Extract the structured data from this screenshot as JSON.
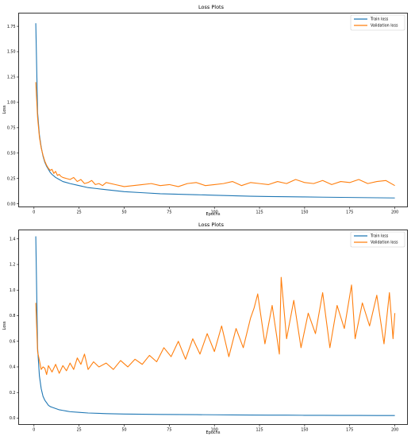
{
  "chart_data": [
    {
      "type": "line",
      "title": "Loss Plots",
      "xlabel": "Epochs",
      "ylabel": "Loss",
      "xlim": [
        -8.5,
        207
      ],
      "ylim": [
        -0.03,
        1.88
      ],
      "xticks": [
        0,
        25,
        50,
        75,
        100,
        125,
        150,
        175,
        200
      ],
      "xtick_labels": [
        "0",
        "25",
        "50",
        "75",
        "100",
        "125",
        "150",
        "175",
        "200"
      ],
      "yticks": [
        0.0,
        0.25,
        0.5,
        0.75,
        1.0,
        1.25,
        1.5,
        1.75
      ],
      "ytick_labels": [
        "0.00",
        "0.25",
        "0.50",
        "0.75",
        "1.00",
        "1.25",
        "1.50",
        "1.75"
      ],
      "grid": false,
      "legend_position": "top-right",
      "series": [
        {
          "name": "Train loss",
          "color": "#1f77b4",
          "x": [
            1,
            2,
            3,
            4,
            5,
            6,
            7,
            8,
            9,
            10,
            12,
            14,
            16,
            18,
            20,
            25,
            30,
            35,
            40,
            45,
            50,
            60,
            70,
            80,
            90,
            100,
            110,
            120,
            130,
            140,
            150,
            160,
            170,
            180,
            190,
            200
          ],
          "y": [
            1.78,
            0.9,
            0.68,
            0.56,
            0.47,
            0.41,
            0.37,
            0.34,
            0.31,
            0.29,
            0.26,
            0.24,
            0.22,
            0.21,
            0.2,
            0.18,
            0.16,
            0.15,
            0.14,
            0.13,
            0.12,
            0.11,
            0.1,
            0.095,
            0.09,
            0.085,
            0.08,
            0.075,
            0.072,
            0.07,
            0.068,
            0.066,
            0.064,
            0.062,
            0.06,
            0.058
          ]
        },
        {
          "name": "Validation loss",
          "color": "#ff7f0e",
          "x": [
            1,
            2,
            3,
            4,
            5,
            6,
            7,
            8,
            9,
            10,
            11,
            12,
            13,
            14,
            15,
            16,
            18,
            20,
            22,
            24,
            26,
            28,
            30,
            32,
            34,
            36,
            38,
            40,
            45,
            50,
            55,
            60,
            65,
            70,
            75,
            80,
            85,
            90,
            95,
            100,
            105,
            110,
            115,
            120,
            125,
            130,
            135,
            140,
            145,
            150,
            155,
            160,
            165,
            170,
            175,
            180,
            185,
            190,
            195,
            200
          ],
          "y": [
            1.2,
            0.85,
            0.66,
            0.55,
            0.48,
            0.42,
            0.38,
            0.35,
            0.33,
            0.34,
            0.3,
            0.32,
            0.28,
            0.29,
            0.27,
            0.26,
            0.25,
            0.24,
            0.26,
            0.22,
            0.24,
            0.2,
            0.21,
            0.23,
            0.19,
            0.2,
            0.18,
            0.21,
            0.19,
            0.17,
            0.18,
            0.19,
            0.2,
            0.18,
            0.19,
            0.17,
            0.2,
            0.21,
            0.18,
            0.19,
            0.2,
            0.22,
            0.18,
            0.21,
            0.2,
            0.19,
            0.22,
            0.2,
            0.24,
            0.21,
            0.2,
            0.23,
            0.19,
            0.22,
            0.21,
            0.24,
            0.2,
            0.22,
            0.23,
            0.18
          ]
        }
      ]
    },
    {
      "type": "line",
      "title": "Loss Plots",
      "xlabel": "Epochs",
      "ylabel": "Loss",
      "xlim": [
        -8.5,
        207
      ],
      "ylim": [
        -0.05,
        1.47
      ],
      "xticks": [
        0,
        25,
        50,
        75,
        100,
        125,
        150,
        175,
        200
      ],
      "xtick_labels": [
        "0",
        "25",
        "50",
        "75",
        "100",
        "125",
        "150",
        "175",
        "200"
      ],
      "yticks": [
        0.0,
        0.2,
        0.4,
        0.6,
        0.8,
        1.0,
        1.2,
        1.4
      ],
      "ytick_labels": [
        "0.0",
        "0.2",
        "0.4",
        "0.6",
        "0.8",
        "1.0",
        "1.2",
        "1.4"
      ],
      "grid": false,
      "legend_position": "top-right",
      "series": [
        {
          "name": "Train loss",
          "color": "#1f77b4",
          "x": [
            1,
            2,
            3,
            4,
            5,
            6,
            7,
            8,
            9,
            10,
            12,
            14,
            16,
            18,
            20,
            25,
            30,
            40,
            50,
            60,
            70,
            80,
            90,
            100,
            110,
            120,
            130,
            140,
            150,
            160,
            170,
            180,
            190,
            200
          ],
          "y": [
            1.42,
            0.55,
            0.33,
            0.23,
            0.17,
            0.14,
            0.12,
            0.1,
            0.09,
            0.085,
            0.075,
            0.065,
            0.06,
            0.055,
            0.05,
            0.045,
            0.04,
            0.035,
            0.032,
            0.03,
            0.029,
            0.028,
            0.027,
            0.026,
            0.025,
            0.024,
            0.023,
            0.023,
            0.022,
            0.022,
            0.021,
            0.021,
            0.02,
            0.02
          ]
        },
        {
          "name": "Validation loss",
          "color": "#ff7f0e",
          "x": [
            1,
            2,
            3,
            4,
            5,
            6,
            7,
            8,
            10,
            12,
            14,
            16,
            18,
            20,
            22,
            24,
            26,
            28,
            30,
            33,
            36,
            40,
            44,
            48,
            52,
            56,
            60,
            64,
            68,
            72,
            76,
            80,
            84,
            88,
            92,
            96,
            100,
            104,
            108,
            112,
            116,
            120,
            122,
            124,
            128,
            132,
            136,
            137,
            140,
            144,
            148,
            152,
            156,
            160,
            164,
            168,
            172,
            176,
            178,
            182,
            186,
            190,
            194,
            197,
            199,
            200
          ],
          "y": [
            0.9,
            0.52,
            0.45,
            0.38,
            0.4,
            0.39,
            0.34,
            0.41,
            0.36,
            0.42,
            0.35,
            0.41,
            0.37,
            0.43,
            0.38,
            0.47,
            0.42,
            0.5,
            0.38,
            0.44,
            0.4,
            0.43,
            0.38,
            0.45,
            0.4,
            0.46,
            0.42,
            0.49,
            0.44,
            0.55,
            0.48,
            0.6,
            0.46,
            0.62,
            0.5,
            0.66,
            0.52,
            0.72,
            0.48,
            0.7,
            0.55,
            0.78,
            0.86,
            0.97,
            0.58,
            0.88,
            0.5,
            1.1,
            0.62,
            0.92,
            0.55,
            0.82,
            0.66,
            0.98,
            0.55,
            0.88,
            0.7,
            1.04,
            0.62,
            0.9,
            0.72,
            0.96,
            0.58,
            0.98,
            0.62,
            0.82
          ]
        }
      ]
    }
  ]
}
